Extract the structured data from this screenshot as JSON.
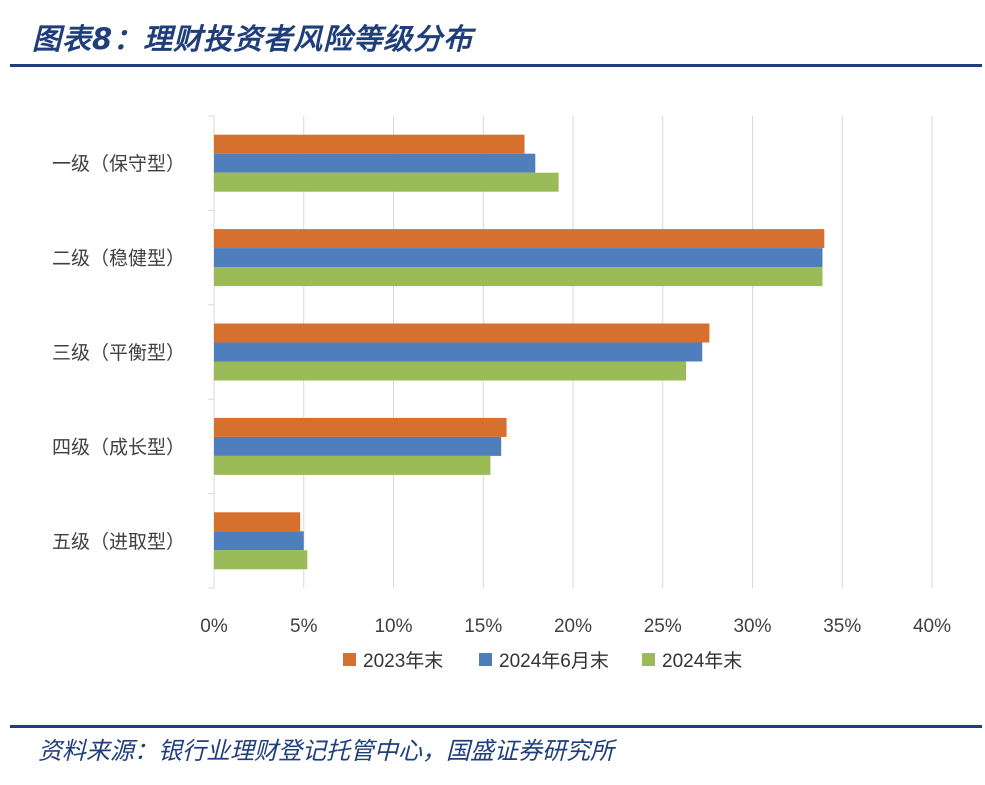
{
  "header": {
    "title": "图表8：理财投资者风险等级分布"
  },
  "footer": {
    "source": "资料来源：银行业理财登记托管中心，国盛证券研究所"
  },
  "colors": {
    "rule": "#1f3e7a",
    "grid": "#d9d9d9"
  },
  "chart_data": {
    "type": "bar",
    "orientation": "horizontal",
    "title": "",
    "xlabel": "",
    "ylabel": "",
    "categories": [
      "一级（保守型）",
      "二级（稳健型）",
      "三级（平衡型）",
      "四级（成长型）",
      "五级（进取型）"
    ],
    "series": [
      {
        "name": "2023年末",
        "color": "#d6702e",
        "values": [
          17.3,
          34.0,
          27.6,
          16.3,
          4.8
        ]
      },
      {
        "name": "2024年6月末",
        "color": "#4f7ebc",
        "values": [
          17.9,
          33.9,
          27.2,
          16.0,
          5.0
        ]
      },
      {
        "name": "2024年末",
        "color": "#9bbb59",
        "values": [
          19.2,
          33.9,
          26.3,
          15.4,
          5.2
        ]
      }
    ],
    "xlim": [
      0,
      40
    ],
    "xticks": [
      0,
      5,
      10,
      15,
      20,
      25,
      30,
      35,
      40
    ],
    "xtick_labels": [
      "0%",
      "5%",
      "10%",
      "15%",
      "20%",
      "25%",
      "30%",
      "35%",
      "40%"
    ],
    "grid": true,
    "legend_position": "bottom"
  }
}
